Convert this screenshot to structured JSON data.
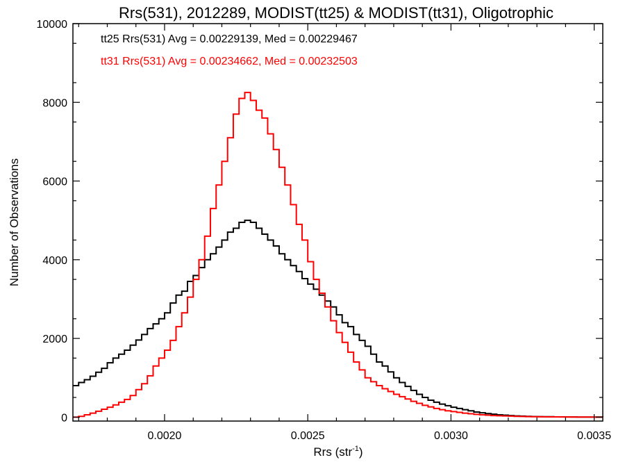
{
  "chart_data": {
    "type": "line",
    "title": "Rrs(531), 2012289, MODIST(tt25) & MODIST(tt31), Oligotrophic",
    "xlabel_main": "Rrs (str",
    "xlabel_sup": "-1",
    "xlabel_end": ")",
    "ylabel": "Number of Observations",
    "xlim": [
      0.00168,
      0.00353
    ],
    "ylim": [
      -100,
      10000
    ],
    "x_ticks": [
      0.002,
      0.0025,
      0.003,
      0.0035
    ],
    "x_tick_labels": [
      "0.0020",
      "0.0025",
      "0.0030",
      "0.0035"
    ],
    "y_ticks": [
      0,
      2000,
      4000,
      6000,
      8000,
      10000
    ],
    "y_tick_labels": [
      "0",
      "2000",
      "4000",
      "6000",
      "8000",
      "10000"
    ],
    "grid": false,
    "legend_placement": "top-left",
    "series": [
      {
        "name": "tt25 Rrs(531) Avg = 0.00229139, Med = 0.00229467",
        "color": "#000000",
        "step": true,
        "points": [
          [
            0.00168,
            800
          ],
          [
            0.0017,
            880
          ],
          [
            0.00172,
            950
          ],
          [
            0.00174,
            1040
          ],
          [
            0.00176,
            1140
          ],
          [
            0.00178,
            1240
          ],
          [
            0.0018,
            1380
          ],
          [
            0.00182,
            1500
          ],
          [
            0.00184,
            1600
          ],
          [
            0.00186,
            1700
          ],
          [
            0.00188,
            1830
          ],
          [
            0.0019,
            1960
          ],
          [
            0.00192,
            2100
          ],
          [
            0.00194,
            2250
          ],
          [
            0.00196,
            2370
          ],
          [
            0.00198,
            2500
          ],
          [
            0.002,
            2650
          ],
          [
            0.00202,
            2900
          ],
          [
            0.00204,
            3100
          ],
          [
            0.00206,
            3200
          ],
          [
            0.00208,
            3450
          ],
          [
            0.0021,
            3600
          ],
          [
            0.00212,
            3800
          ],
          [
            0.00214,
            4000
          ],
          [
            0.00216,
            4150
          ],
          [
            0.00218,
            4320
          ],
          [
            0.0022,
            4500
          ],
          [
            0.00222,
            4700
          ],
          [
            0.00224,
            4800
          ],
          [
            0.00226,
            4950
          ],
          [
            0.00228,
            5000
          ],
          [
            0.0023,
            4950
          ],
          [
            0.00232,
            4800
          ],
          [
            0.00234,
            4650
          ],
          [
            0.00236,
            4500
          ],
          [
            0.00238,
            4350
          ],
          [
            0.0024,
            4150
          ],
          [
            0.00242,
            4000
          ],
          [
            0.00244,
            3850
          ],
          [
            0.00246,
            3700
          ],
          [
            0.00248,
            3520
          ],
          [
            0.0025,
            3380
          ],
          [
            0.00252,
            3250
          ],
          [
            0.00254,
            3100
          ],
          [
            0.00256,
            2950
          ],
          [
            0.00258,
            2800
          ],
          [
            0.0026,
            2600
          ],
          [
            0.00262,
            2400
          ],
          [
            0.00264,
            2300
          ],
          [
            0.00266,
            2100
          ],
          [
            0.00268,
            1950
          ],
          [
            0.0027,
            1800
          ],
          [
            0.00272,
            1600
          ],
          [
            0.00274,
            1400
          ],
          [
            0.00276,
            1300
          ],
          [
            0.00278,
            1150
          ],
          [
            0.0028,
            1000
          ],
          [
            0.00282,
            880
          ],
          [
            0.00284,
            780
          ],
          [
            0.00286,
            680
          ],
          [
            0.00288,
            580
          ],
          [
            0.0029,
            500
          ],
          [
            0.00292,
            430
          ],
          [
            0.00294,
            380
          ],
          [
            0.00296,
            330
          ],
          [
            0.00298,
            290
          ],
          [
            0.003,
            250
          ],
          [
            0.00302,
            220
          ],
          [
            0.00304,
            190
          ],
          [
            0.00306,
            160
          ],
          [
            0.00308,
            130
          ],
          [
            0.0031,
            110
          ],
          [
            0.00312,
            90
          ],
          [
            0.00314,
            75
          ],
          [
            0.00316,
            60
          ],
          [
            0.00318,
            50
          ],
          [
            0.0032,
            40
          ],
          [
            0.00322,
            30
          ],
          [
            0.00324,
            25
          ],
          [
            0.00326,
            20
          ],
          [
            0.00328,
            15
          ],
          [
            0.0033,
            12
          ],
          [
            0.00332,
            10
          ],
          [
            0.00336,
            6
          ],
          [
            0.0034,
            4
          ],
          [
            0.00344,
            2
          ],
          [
            0.00348,
            1
          ],
          [
            0.00353,
            0
          ]
        ]
      },
      {
        "name": "tt31 Rrs(531) Avg = 0.00234662, Med = 0.00232503",
        "color": "#ff0000",
        "step": true,
        "points": [
          [
            0.00168,
            0
          ],
          [
            0.0017,
            20
          ],
          [
            0.00172,
            60
          ],
          [
            0.00174,
            100
          ],
          [
            0.00176,
            150
          ],
          [
            0.00178,
            200
          ],
          [
            0.0018,
            250
          ],
          [
            0.00182,
            310
          ],
          [
            0.00184,
            380
          ],
          [
            0.00186,
            450
          ],
          [
            0.00188,
            550
          ],
          [
            0.0019,
            700
          ],
          [
            0.00192,
            850
          ],
          [
            0.00194,
            1050
          ],
          [
            0.00196,
            1300
          ],
          [
            0.00198,
            1500
          ],
          [
            0.002,
            1700
          ],
          [
            0.00202,
            1950
          ],
          [
            0.00204,
            2300
          ],
          [
            0.00206,
            2650
          ],
          [
            0.00208,
            3050
          ],
          [
            0.0021,
            3500
          ],
          [
            0.00212,
            4000
          ],
          [
            0.00214,
            4600
          ],
          [
            0.00216,
            5300
          ],
          [
            0.00218,
            5900
          ],
          [
            0.0022,
            6500
          ],
          [
            0.00222,
            7100
          ],
          [
            0.00224,
            7700
          ],
          [
            0.00226,
            8100
          ],
          [
            0.00228,
            8250
          ],
          [
            0.0023,
            8050
          ],
          [
            0.00232,
            7800
          ],
          [
            0.00234,
            7600
          ],
          [
            0.00236,
            7200
          ],
          [
            0.00238,
            6800
          ],
          [
            0.0024,
            6350
          ],
          [
            0.00242,
            5900
          ],
          [
            0.00244,
            5400
          ],
          [
            0.00246,
            4900
          ],
          [
            0.00248,
            4500
          ],
          [
            0.0025,
            3950
          ],
          [
            0.00252,
            3500
          ],
          [
            0.00254,
            3150
          ],
          [
            0.00256,
            2800
          ],
          [
            0.00258,
            2450
          ],
          [
            0.0026,
            2150
          ],
          [
            0.00262,
            1900
          ],
          [
            0.00264,
            1650
          ],
          [
            0.00266,
            1400
          ],
          [
            0.00268,
            1200
          ],
          [
            0.0027,
            1000
          ],
          [
            0.00272,
            900
          ],
          [
            0.00274,
            800
          ],
          [
            0.00276,
            720
          ],
          [
            0.00278,
            650
          ],
          [
            0.0028,
            580
          ],
          [
            0.00282,
            520
          ],
          [
            0.00284,
            460
          ],
          [
            0.00286,
            400
          ],
          [
            0.00288,
            350
          ],
          [
            0.0029,
            300
          ],
          [
            0.00292,
            260
          ],
          [
            0.00294,
            220
          ],
          [
            0.00296,
            190
          ],
          [
            0.00298,
            160
          ],
          [
            0.003,
            140
          ],
          [
            0.00302,
            120
          ],
          [
            0.00304,
            100
          ],
          [
            0.00306,
            85
          ],
          [
            0.00308,
            70
          ],
          [
            0.0031,
            60
          ],
          [
            0.00312,
            50
          ],
          [
            0.00314,
            40
          ],
          [
            0.00316,
            35
          ],
          [
            0.00318,
            30
          ],
          [
            0.0032,
            25
          ],
          [
            0.00322,
            20
          ],
          [
            0.00324,
            16
          ],
          [
            0.00326,
            12
          ],
          [
            0.00328,
            10
          ],
          [
            0.0033,
            8
          ],
          [
            0.00334,
            5
          ],
          [
            0.00338,
            3
          ],
          [
            0.00342,
            2
          ],
          [
            0.00346,
            1
          ],
          [
            0.0035,
            0
          ],
          [
            0.00353,
            0
          ]
        ]
      }
    ]
  }
}
